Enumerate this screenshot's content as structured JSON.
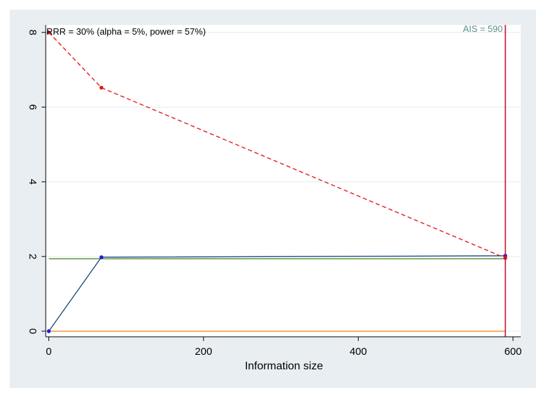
{
  "colors": {
    "frame_bg": "#e8eef1",
    "plot_bg": "#ffffff",
    "grid": "#e3ecef",
    "upper_boundary": "#e31a1c",
    "z_curve": "#1f4e79",
    "z_curve_points": "#1e1ee0",
    "conventional": "#4a8a2c",
    "zero_line": "#f08a2a",
    "ais_line": "#c8102e",
    "ais_label": "#5b8f8a"
  },
  "chart_data": {
    "type": "line",
    "title": "",
    "xlabel": "Information size",
    "ylabel": "",
    "xlim": [
      -4,
      610
    ],
    "ylim": [
      -0.15,
      8.2
    ],
    "xticks": [
      0,
      200,
      400,
      600
    ],
    "yticks": [
      0,
      2,
      4,
      6,
      8
    ],
    "grid": true,
    "annotations": {
      "top_left": "RRR = 30% (alpha = 5%, power = 57%)",
      "top_right": "AIS = 590"
    },
    "ais": 590,
    "series": [
      {
        "role": "upper_boundary",
        "style": "dashed",
        "markers": true,
        "x": [
          0,
          68,
          590
        ],
        "y": [
          8.0,
          6.52,
          1.96
        ]
      },
      {
        "role": "z_curve",
        "style": "solid",
        "markers": true,
        "x": [
          0,
          68,
          590
        ],
        "y": [
          0.0,
          1.98,
          2.02
        ]
      },
      {
        "role": "conventional_boundary",
        "style": "solid",
        "markers": false,
        "x": [
          0,
          590
        ],
        "y": [
          1.94,
          1.94
        ]
      },
      {
        "role": "zero_line",
        "style": "solid",
        "markers": false,
        "x": [
          0,
          590
        ],
        "y": [
          0.0,
          0.0
        ]
      }
    ]
  }
}
